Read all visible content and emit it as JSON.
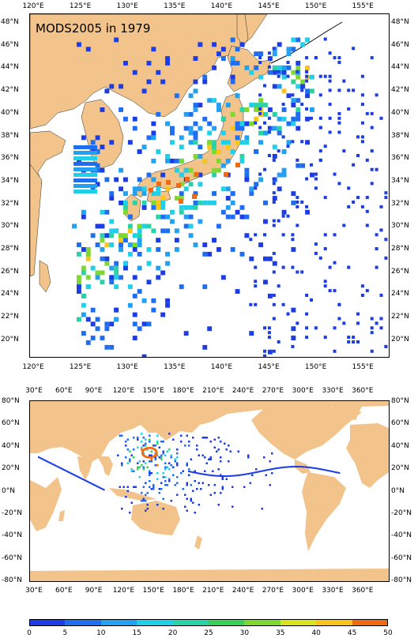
{
  "top_map": {
    "title": "MODS2005 in 1979",
    "lon_ticks": [
      "120°E",
      "125°E",
      "130°E",
      "135°E",
      "140°E",
      "145°E",
      "150°E",
      "155°E"
    ],
    "lat_ticks": [
      "48°N",
      "46°N",
      "44°N",
      "42°N",
      "40°N",
      "38°N",
      "36°N",
      "34°N",
      "32°N",
      "30°N",
      "28°N",
      "26°N",
      "24°N",
      "22°N",
      "20°N"
    ],
    "land_color": "#f2c38a",
    "extent": {
      "lon": [
        119,
        157.5
      ],
      "lat": [
        18.5,
        49.5
      ]
    }
  },
  "bottom_map": {
    "lon_ticks": [
      "30°E",
      "60°E",
      "90°E",
      "120°E",
      "150°E",
      "180°E",
      "210°E",
      "240°E",
      "270°E",
      "300°E",
      "330°E",
      "360°E"
    ],
    "lat_ticks": [
      "80°N",
      "60°N",
      "40°N",
      "20°N",
      "0°N",
      "-20°N",
      "-40°N",
      "-60°N",
      "-80°N"
    ],
    "land_color": "#f2c38a",
    "extent": {
      "lon": [
        20,
        380
      ],
      "lat": [
        -80,
        80
      ]
    }
  },
  "colorbar": {
    "labels": [
      "0",
      "5",
      "10",
      "15",
      "20",
      "25",
      "30",
      "35",
      "40",
      "45",
      "50"
    ],
    "colors": [
      "#1c3ce6",
      "#1f6df0",
      "#22a0f2",
      "#1fd0e8",
      "#2ad3a6",
      "#37d15a",
      "#7ed82e",
      "#d8e51e",
      "#fbc41a",
      "#f06914"
    ]
  }
}
